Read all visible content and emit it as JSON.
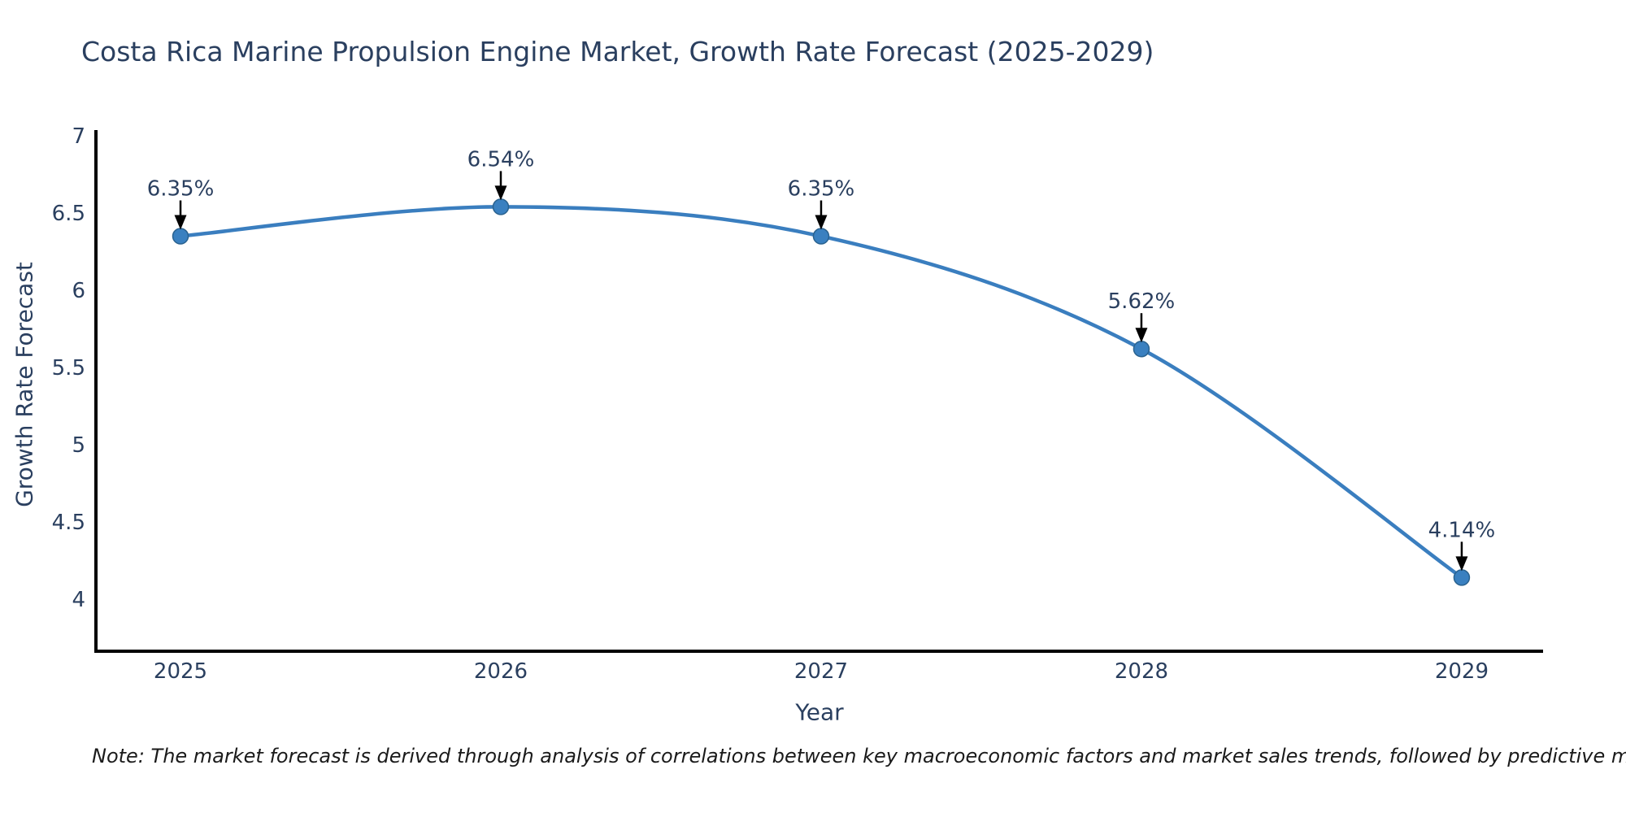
{
  "note": "Note: The market forecast is derived through analysis of correlations between key macroeconomic factors and market sales trends, followed by predictive modeling to project future sales",
  "chart_data": {
    "type": "line",
    "title": "Costa Rica Marine Propulsion Engine Market, Growth Rate Forecast (2025-2029)",
    "xlabel": "Year",
    "ylabel": "Growth Rate Forecast",
    "x": [
      2025,
      2026,
      2027,
      2028,
      2029
    ],
    "series": [
      {
        "name": "Growth Rate Forecast",
        "values": [
          6.35,
          6.54,
          6.35,
          5.62,
          4.14
        ]
      }
    ],
    "point_labels": [
      "6.35%",
      "6.54%",
      "6.35%",
      "5.62%",
      "4.14%"
    ],
    "xticks": [
      "2025",
      "2026",
      "2027",
      "2028",
      "2029"
    ],
    "yticks": [
      "7",
      "6.5",
      "6",
      "5.5",
      "5",
      "4.5",
      "4"
    ],
    "ytick_values": [
      7,
      6.5,
      6,
      5.5,
      5,
      4.5,
      4
    ],
    "xlim": [
      2024.736,
      2029.254
    ],
    "ylim": [
      3.663,
      7.037
    ],
    "grid": false,
    "legend": "none",
    "line_shape": "spline",
    "annotations_style": "black-arrow-down-to-point",
    "colors": {
      "line": "#3a7ebf",
      "marker": "#3a80c0",
      "marker_edge": "#2a628f",
      "text": "#2a3f5f",
      "axis": "#000000",
      "arrow": "#000000",
      "background": "#ffffff"
    }
  }
}
